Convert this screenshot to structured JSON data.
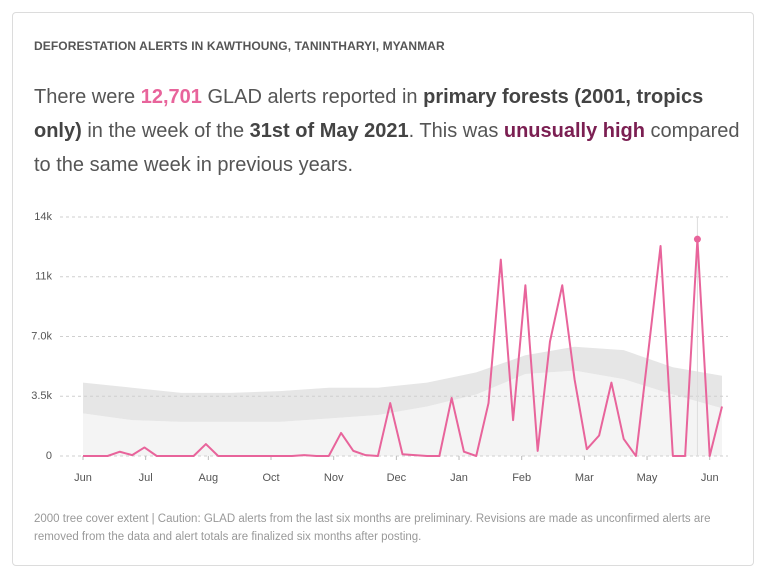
{
  "title": "DEFORESTATION ALERTS IN KAWTHOUNG, TANINTHARYI, MYANMAR",
  "sentence": [
    {
      "text": "There were "
    },
    {
      "text": "12,701",
      "emphasis": "count"
    },
    {
      "text": " GLAD alerts reported in "
    },
    {
      "text": "primary forests (2001, tropics only)",
      "emphasis": "bold"
    },
    {
      "text": " in the week of the "
    },
    {
      "text": "31st of May 2021",
      "emphasis": "bold"
    },
    {
      "text": ". This was "
    },
    {
      "text": "unusually high",
      "emphasis": "status"
    },
    {
      "text": " compared to the same week in previous years."
    }
  ],
  "chart_data": {
    "type": "line",
    "xlim": [
      0,
      52
    ],
    "xticks": [
      {
        "value": 0,
        "label": "Jun"
      },
      {
        "value": 5.1,
        "label": "Jul"
      },
      {
        "value": 10.2,
        "label": "Aug"
      },
      {
        "value": 15.3,
        "label": "Oct"
      },
      {
        "value": 20.4,
        "label": "Nov"
      },
      {
        "value": 25.5,
        "label": "Dec"
      },
      {
        "value": 30.6,
        "label": "Jan"
      },
      {
        "value": 35.7,
        "label": "Feb"
      },
      {
        "value": 40.8,
        "label": "Mar"
      },
      {
        "value": 45.9,
        "label": "May"
      },
      {
        "value": 51,
        "label": "Jun"
      }
    ],
    "ylim": [
      0,
      14000
    ],
    "yticks": [
      0,
      {
        "value": 3500,
        "label": "3.5k"
      },
      {
        "value": 7000,
        "label": "7.0k"
      },
      {
        "value": 10500,
        "label": "11k"
      },
      {
        "value": 14000,
        "label": "14k"
      }
    ],
    "grid": true,
    "band": {
      "color": "#e6e6e6",
      "below_color": "#f4f4f4",
      "x": [
        0,
        4,
        8,
        12,
        16,
        20,
        24,
        28,
        32,
        36,
        40,
        44,
        48,
        52
      ],
      "upper": [
        4300,
        4000,
        3700,
        3700,
        3800,
        4000,
        4000,
        4300,
        4900,
        5900,
        6400,
        6200,
        5200,
        4700
      ],
      "lower": [
        2500,
        2100,
        2000,
        2000,
        2000,
        2200,
        2400,
        2900,
        3600,
        4800,
        5000,
        4500,
        3600,
        2800
      ]
    },
    "series": [
      {
        "color": "#e8649b",
        "highlight_index": 50,
        "values": [
          0,
          0,
          0,
          250,
          50,
          500,
          0,
          0,
          0,
          0,
          700,
          0,
          0,
          0,
          0,
          0,
          0,
          0,
          50,
          0,
          0,
          1350,
          300,
          50,
          0,
          3100,
          100,
          50,
          0,
          0,
          3400,
          250,
          0,
          3100,
          11500,
          2100,
          10000,
          300,
          6700,
          10000,
          4500,
          400,
          1200,
          4300,
          1000,
          0,
          6100,
          12300,
          0,
          0,
          12701,
          0,
          2900
        ]
      }
    ],
    "note": "2000 tree cover extent | Caution: GLAD alerts from the last six months are preliminary. Revisions are made as unconfirmed alerts are removed from the data and alert totals are finalized six months after posting."
  }
}
